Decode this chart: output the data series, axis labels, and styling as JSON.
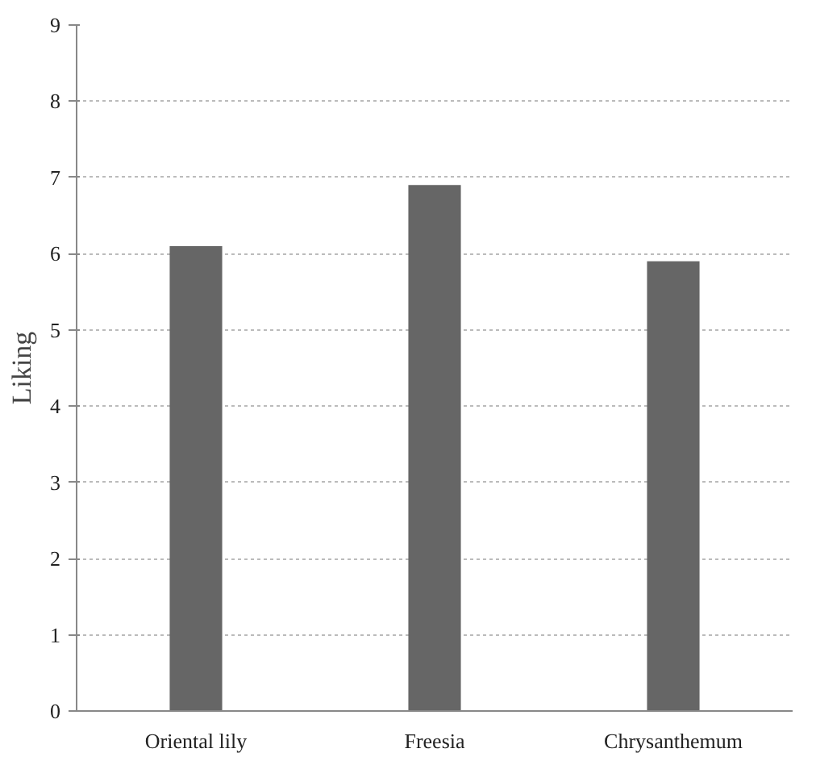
{
  "chart_data": {
    "type": "bar",
    "ylabel": "Liking",
    "categories": [
      "Oriental lily",
      "Freesia",
      "Chrysanthemum"
    ],
    "values": [
      6.1,
      6.9,
      5.9
    ],
    "color": "#666666",
    "ylim": [
      0,
      9
    ],
    "yticks": [
      0,
      1,
      2,
      3,
      4,
      5,
      6,
      7,
      8,
      9
    ],
    "grid": "y"
  }
}
